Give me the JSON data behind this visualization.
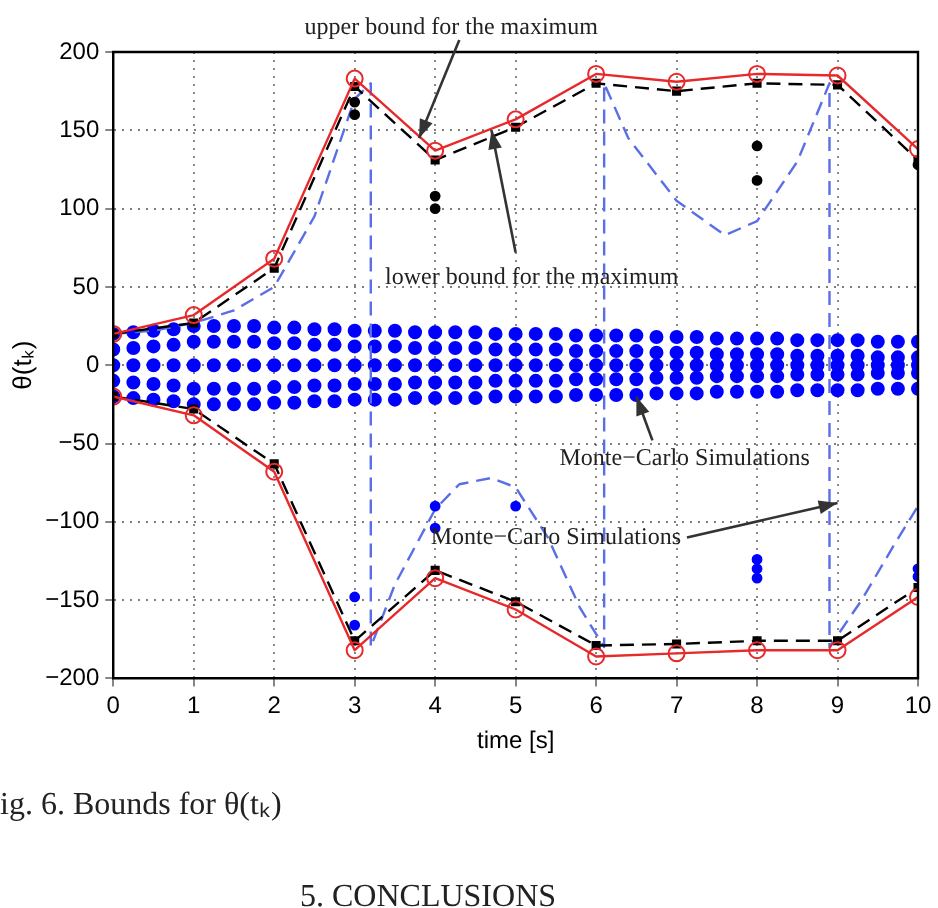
{
  "chart_data": {
    "type": "line",
    "xlabel": "time [s]",
    "ylabel": "θ(tₖ)",
    "xlim": [
      0,
      10
    ],
    "xticks": [
      0,
      1,
      2,
      3,
      4,
      5,
      6,
      7,
      8,
      9,
      10
    ],
    "ylim": [
      -200,
      200
    ],
    "yticks": [
      {
        "value": -200,
        "label": "−200"
      },
      {
        "value": -150,
        "label": "−150"
      },
      {
        "value": -100,
        "label": "−100"
      },
      {
        "value": -50,
        "label": "−50"
      },
      0,
      50,
      100,
      150,
      200
    ],
    "grid": true,
    "legend": false,
    "series": [
      {
        "type": "scatter",
        "color": "#0000ff",
        "marker": "circle",
        "x": [
          0,
          0,
          0,
          0,
          0,
          0.25,
          0.25,
          0.25,
          0.25,
          0.25,
          0.5,
          0.5,
          0.5,
          0.5,
          0.5,
          0.75,
          0.75,
          0.75,
          0.75,
          0.75,
          1,
          1,
          1,
          1,
          1,
          1.25,
          1.25,
          1.25,
          1.25,
          1.25,
          1.5,
          1.5,
          1.5,
          1.5,
          1.5,
          1.75,
          1.75,
          1.75,
          1.75,
          1.75,
          2,
          2,
          2,
          2,
          2,
          2.25,
          2.25,
          2.25,
          2.25,
          2.25,
          2.5,
          2.5,
          2.5,
          2.5,
          2.5,
          2.75,
          2.75,
          2.75,
          2.75,
          2.75,
          3,
          3,
          3,
          3,
          3,
          3.25,
          3.25,
          3.25,
          3.25,
          3.25,
          3.5,
          3.5,
          3.5,
          3.5,
          3.5,
          3.75,
          3.75,
          3.75,
          3.75,
          3.75,
          4,
          4,
          4,
          4,
          4,
          4.25,
          4.25,
          4.25,
          4.25,
          4.25,
          4.5,
          4.5,
          4.5,
          4.5,
          4.5,
          4.75,
          4.75,
          4.75,
          4.75,
          4.75,
          5,
          5,
          5,
          5,
          5,
          5.25,
          5.25,
          5.25,
          5.25,
          5.25,
          5.5,
          5.5,
          5.5,
          5.5,
          5.5,
          5.75,
          5.75,
          5.75,
          5.75,
          5.75,
          6,
          6,
          6,
          6,
          6,
          6.25,
          6.25,
          6.25,
          6.25,
          6.25,
          6.5,
          6.5,
          6.5,
          6.5,
          6.5,
          6.75,
          6.75,
          6.75,
          6.75,
          6.75,
          7,
          7,
          7,
          7,
          7,
          7.25,
          7.25,
          7.25,
          7.25,
          7.25,
          7.5,
          7.5,
          7.5,
          7.5,
          7.5,
          7.75,
          7.75,
          7.75,
          7.75,
          7.75,
          8,
          8,
          8,
          8,
          8,
          8.25,
          8.25,
          8.25,
          8.25,
          8.25,
          8.5,
          8.5,
          8.5,
          8.5,
          8.5,
          8.75,
          8.75,
          8.75,
          8.75,
          8.75,
          9,
          9,
          9,
          9,
          9,
          9.25,
          9.25,
          9.25,
          9.25,
          9.25,
          9.5,
          9.5,
          9.5,
          9.5,
          9.5,
          9.75,
          9.75,
          9.75,
          9.75,
          9.75,
          10,
          10,
          10,
          10,
          10
        ],
        "values": [
          20,
          10,
          0,
          -10,
          -20,
          21,
          11,
          0,
          -11,
          -21,
          22,
          12,
          0,
          -12,
          -22,
          23,
          13,
          0,
          -13,
          -23,
          25,
          15,
          0,
          -15,
          -25,
          25,
          15,
          0,
          -15,
          -25,
          25,
          15,
          0,
          -15,
          -25,
          25,
          15,
          0,
          -15,
          -25,
          24,
          14,
          0,
          -14,
          -24,
          24,
          14,
          0,
          -14,
          -24,
          23,
          13,
          0,
          -13,
          -23,
          23,
          13,
          0,
          -13,
          -23,
          22,
          12,
          0,
          -12,
          -22,
          22,
          12,
          0,
          -12,
          -22,
          22,
          12,
          0,
          -12,
          -22,
          21,
          11,
          0,
          -11,
          -21,
          21,
          11,
          0,
          -11,
          -21,
          21,
          11,
          0,
          -11,
          -21,
          21,
          11,
          0,
          -11,
          -21,
          20,
          10,
          0,
          -10,
          -20,
          20,
          10,
          0,
          -10,
          -20,
          20,
          10,
          0,
          -10,
          -20,
          20,
          10,
          0,
          -10,
          -20,
          19,
          9,
          0,
          -9,
          -19,
          19,
          9,
          0,
          -9,
          -19,
          19,
          9,
          0,
          -9,
          -19,
          19,
          9,
          0,
          -9,
          -19,
          18,
          8,
          0,
          -8,
          -18,
          18,
          8,
          0,
          -8,
          -18,
          18,
          8,
          0,
          -8,
          -18,
          17,
          7,
          0,
          -7,
          -17,
          17,
          7,
          0,
          -7,
          -17,
          17,
          7,
          0,
          -7,
          -17,
          17,
          7,
          0,
          -7,
          -17,
          16,
          6,
          0,
          -6,
          -16,
          16,
          6,
          0,
          -6,
          -16,
          16,
          6,
          0,
          -6,
          -16,
          16,
          6,
          0,
          -6,
          -16,
          15,
          5,
          0,
          -5,
          -15,
          15,
          5,
          0,
          -5,
          -15,
          15,
          5,
          0,
          -5,
          -15
        ]
      },
      {
        "type": "line",
        "color": "#5a6ee6",
        "marker": "none",
        "line_style": "dashed",
        "x": [
          0,
          0.5,
          1,
          1.5,
          2,
          2.5,
          2.8,
          3.0,
          3.2,
          3.2,
          3.5,
          4,
          4.3,
          4.7,
          5.0,
          5.4,
          5.8,
          6.1,
          6.1,
          6.4,
          7,
          7.6,
          8,
          8.5,
          8.9,
          8.9,
          9.3,
          9.7,
          10
        ],
        "values": [
          20,
          22,
          27,
          35,
          50,
          95,
          140,
          170,
          180,
          -180,
          -140,
          -92,
          -76,
          -72,
          -78,
          -110,
          -155,
          -180,
          180,
          145,
          105,
          83,
          92,
          130,
          180,
          -180,
          -150,
          -115,
          -90
        ]
      },
      {
        "type": "scatter",
        "color": "#000000",
        "marker": "circle",
        "x": [
          3,
          3,
          4,
          4,
          8,
          8,
          10
        ],
        "values": [
          168,
          160,
          108,
          100,
          140,
          118,
          128
        ]
      },
      {
        "type": "scatter",
        "color": "#0000ff",
        "marker": "circle",
        "x": [
          3,
          3,
          4,
          4,
          5,
          8,
          8,
          8,
          10,
          10
        ],
        "values": [
          -148,
          -166,
          -90,
          -104,
          -90,
          -124,
          -130,
          -136,
          -130,
          -135
        ]
      },
      {
        "type": "line",
        "color": "#000000",
        "marker": "square",
        "line_style": "dashed",
        "x": [
          0,
          1,
          2,
          3,
          4,
          5,
          6,
          7,
          8,
          9,
          10
        ],
        "values": [
          20,
          27,
          62,
          178,
          131,
          152,
          180,
          175,
          180,
          179,
          131
        ]
      },
      {
        "type": "line",
        "color": "#000000",
        "marker": "square",
        "line_style": "dashed",
        "x": [
          0,
          1,
          2,
          3,
          4,
          5,
          6,
          7,
          8,
          9,
          10
        ],
        "values": [
          -20,
          -28,
          -63,
          -176,
          -131,
          -151,
          -179,
          -178,
          -176,
          -176,
          -142
        ]
      },
      {
        "type": "line",
        "color": "#e8292b",
        "marker": "circle",
        "line_style": "solid",
        "x": [
          0,
          1,
          2,
          3,
          4,
          5,
          6,
          7,
          8,
          9,
          10
        ],
        "values": [
          20,
          32,
          68,
          183,
          137,
          157,
          186,
          181,
          186,
          185,
          138
        ]
      },
      {
        "type": "line",
        "color": "#e8292b",
        "marker": "circle",
        "line_style": "solid",
        "x": [
          0,
          1,
          2,
          3,
          4,
          5,
          6,
          7,
          8,
          9,
          10
        ],
        "values": [
          -20,
          -32,
          -68,
          -182,
          -136,
          -156,
          -186,
          -184,
          -182,
          -182,
          -148
        ]
      }
    ],
    "annotations": [
      {
        "text": "upper bound for the maximum",
        "x": 3.8,
        "y": 145
      },
      {
        "text": "lower bound for the maximum",
        "x": 4.7,
        "y": 150
      },
      {
        "text": "Monte−Carlo Simulations",
        "x": 6.5,
        "y": -20
      },
      {
        "text": "Monte−Carlo Simulations",
        "x": 9,
        "y": -88
      },
      "ig. 6. Bounds for θ(tₖ)",
      "5. CONCLUSIONS"
    ]
  }
}
